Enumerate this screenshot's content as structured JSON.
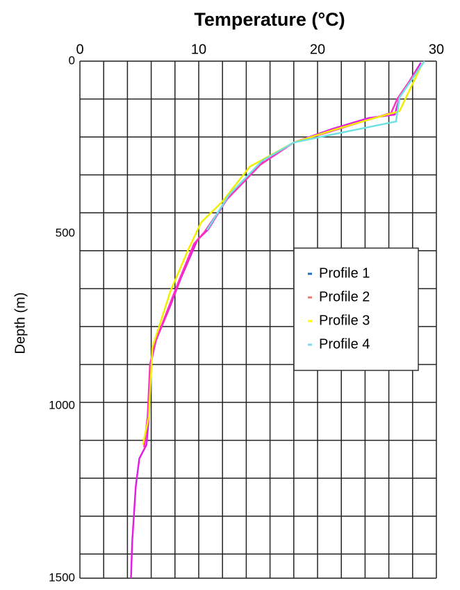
{
  "chart_data": {
    "type": "line",
    "title": "Temperature (°C)",
    "y_label": "Depth (m)",
    "xlim": [
      0,
      30
    ],
    "xticks": [
      0,
      10,
      20,
      30
    ],
    "ylim": [
      0,
      1500
    ],
    "yticks": [
      0,
      500,
      1000,
      1500
    ],
    "y_inverted": true,
    "xgrid": [
      0,
      2,
      4,
      6,
      8,
      10,
      12,
      14,
      16,
      18,
      20,
      22,
      24,
      26,
      28,
      30
    ],
    "ygrid": [
      0,
      110,
      220,
      330,
      440,
      550,
      660,
      770,
      880,
      990,
      1100,
      1210,
      1320,
      1430,
      1500
    ],
    "legend": "right",
    "series": [
      {
        "name": "Profile 1",
        "color": "#1f6fc0",
        "line_color": "#e020e0",
        "x": [
          28.7,
          26.9,
          26.5,
          24.3,
          21.3,
          18,
          15.5,
          12.6,
          10.8,
          9.9,
          8.5,
          7.6,
          6.4,
          6.0,
          5.8,
          5.6,
          5.0,
          4.7,
          4.4,
          4.3
        ],
        "values": [
          4,
          105,
          155,
          165,
          196,
          236,
          286,
          387,
          488,
          518,
          629,
          710,
          810,
          871,
          1032,
          1113,
          1153,
          1234,
          1395,
          1500
        ]
      },
      {
        "name": "Profile 2",
        "color": "#e87a70",
        "line_color": "#ff30c0",
        "x": [
          28.5,
          26.7,
          26.2,
          23.8,
          21.0,
          18,
          15.2,
          12.4,
          10.5,
          9.6,
          8.3,
          7.4,
          6.3,
          5.9,
          5.7,
          5.4
        ],
        "values": [
          20,
          110,
          150,
          175,
          205,
          236,
          300,
          400,
          495,
          530,
          640,
          720,
          820,
          880,
          1030,
          1120
        ]
      },
      {
        "name": "Profile 3",
        "color": "#ffff00",
        "line_color": "#f0f000",
        "x": [
          28.8,
          26.9,
          24.8,
          21.3,
          18,
          14.3,
          12,
          10.2,
          9.1,
          7.6,
          6.1,
          5.8,
          5.3
        ],
        "values": [
          8,
          145,
          165,
          200,
          236,
          306,
          407,
          468,
          548,
          669,
          831,
          1032,
          1113
        ]
      },
      {
        "name": "Profile 4",
        "color": "#7fd8e8",
        "line_color": "#70e0e0",
        "x": [
          29,
          26.9,
          26.6,
          20.8,
          18,
          15.3,
          12.5,
          10.7
        ],
        "values": [
          0,
          105,
          175,
          216,
          236,
          290,
          390,
          490
        ]
      }
    ]
  }
}
